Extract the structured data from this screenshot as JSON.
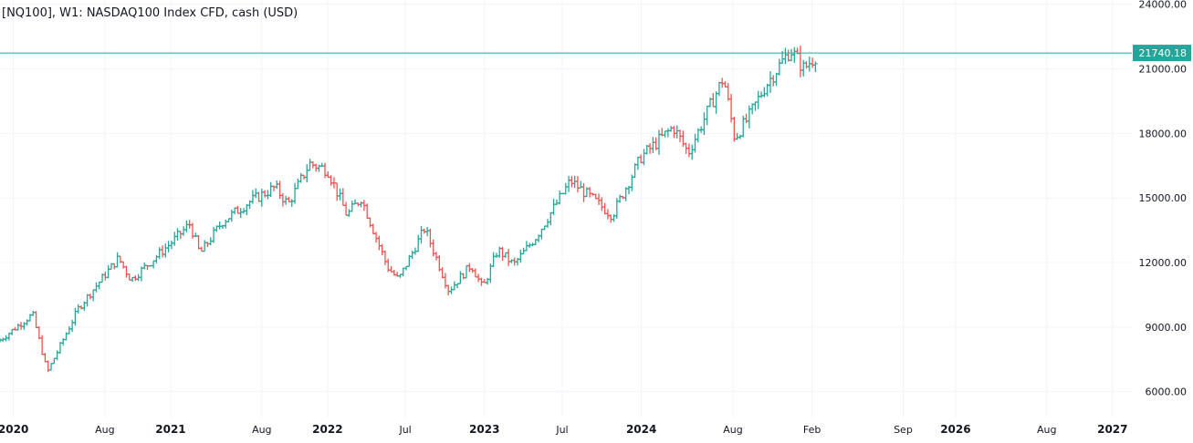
{
  "header": {
    "symbol_title": "[NQ100], W1: NASDAQ100 Index CFD, cash (USD)"
  },
  "colors": {
    "up": "#26a69a",
    "down": "#ef5350",
    "price_line": "#26a69a",
    "grid": "#f0f3fa",
    "axis_text": "#131722",
    "label_bg": "#26a69a",
    "label_text": "#ffffff"
  },
  "chart_data": {
    "type": "ohlc",
    "title": "[NQ100], W1: NASDAQ100 Index CFD, cash (USD)",
    "xlabel": "",
    "ylabel": "",
    "y_axis_position": "right",
    "grid": true,
    "current_price": 21740.18,
    "current_price_label": "21740.18",
    "ylim": [
      4800,
      24200
    ],
    "xlim": [
      "2019-12-01",
      "2027-02-15"
    ],
    "y_ticks": [
      {
        "value": 6000,
        "label": "6000.00"
      },
      {
        "value": 9000,
        "label": "9000.00"
      },
      {
        "value": 12000,
        "label": "12000.00"
      },
      {
        "value": 15000,
        "label": "15000.00"
      },
      {
        "value": 18000,
        "label": "18000.00"
      },
      {
        "value": 21000,
        "label": "21000.00"
      },
      {
        "value": 24000,
        "label": "24000.00"
      }
    ],
    "x_ticks": [
      {
        "date": "2020-01-01",
        "label": "2020",
        "bold": true
      },
      {
        "date": "2020-08-01",
        "label": "Aug",
        "bold": false
      },
      {
        "date": "2021-01-01",
        "label": "2021",
        "bold": true
      },
      {
        "date": "2021-08-01",
        "label": "Aug",
        "bold": false
      },
      {
        "date": "2022-01-01",
        "label": "2022",
        "bold": true
      },
      {
        "date": "2022-07-01",
        "label": "Jul",
        "bold": false
      },
      {
        "date": "2023-01-01",
        "label": "2023",
        "bold": true
      },
      {
        "date": "2023-07-01",
        "label": "Jul",
        "bold": false
      },
      {
        "date": "2024-01-01",
        "label": "2024",
        "bold": true
      },
      {
        "date": "2024-08-01",
        "label": "Aug",
        "bold": false
      },
      {
        "date": "2025-02-01",
        "label": "Feb",
        "bold": false
      },
      {
        "date": "2025-09-01",
        "label": "Sep",
        "bold": false
      },
      {
        "date": "2026-01-01",
        "label": "2026",
        "bold": true
      },
      {
        "date": "2026-08-01",
        "label": "Aug",
        "bold": false
      },
      {
        "date": "2027-01-01",
        "label": "2027",
        "bold": true
      }
    ],
    "anchors": [
      {
        "date": "2019-12-01",
        "close": 8400
      },
      {
        "date": "2020-02-15",
        "close": 9600
      },
      {
        "date": "2020-03-20",
        "close": 6900
      },
      {
        "date": "2020-06-01",
        "close": 9900
      },
      {
        "date": "2020-09-01",
        "close": 12200
      },
      {
        "date": "2020-10-01",
        "close": 11200
      },
      {
        "date": "2021-01-01",
        "close": 12900
      },
      {
        "date": "2021-02-15",
        "close": 13800
      },
      {
        "date": "2021-03-10",
        "close": 12400
      },
      {
        "date": "2021-05-01",
        "close": 13900
      },
      {
        "date": "2021-07-01",
        "close": 14800
      },
      {
        "date": "2021-09-01",
        "close": 15500
      },
      {
        "date": "2021-10-01",
        "close": 14700
      },
      {
        "date": "2021-11-20",
        "close": 16600
      },
      {
        "date": "2022-01-01",
        "close": 16300
      },
      {
        "date": "2022-02-15",
        "close": 14200
      },
      {
        "date": "2022-03-20",
        "close": 15000
      },
      {
        "date": "2022-05-20",
        "close": 11800
      },
      {
        "date": "2022-06-15",
        "close": 11200
      },
      {
        "date": "2022-08-15",
        "close": 13600
      },
      {
        "date": "2022-10-10",
        "close": 10700
      },
      {
        "date": "2022-12-01",
        "close": 11900
      },
      {
        "date": "2022-12-28",
        "close": 10800
      },
      {
        "date": "2023-02-01",
        "close": 12600
      },
      {
        "date": "2023-03-10",
        "close": 11900
      },
      {
        "date": "2023-05-01",
        "close": 13200
      },
      {
        "date": "2023-07-20",
        "close": 15800
      },
      {
        "date": "2023-10-25",
        "close": 14200
      },
      {
        "date": "2023-12-31",
        "close": 16900
      },
      {
        "date": "2024-03-15",
        "close": 18300
      },
      {
        "date": "2024-04-19",
        "close": 17100
      },
      {
        "date": "2024-07-10",
        "close": 20600
      },
      {
        "date": "2024-08-05",
        "close": 17800
      },
      {
        "date": "2024-09-05",
        "close": 18700
      },
      {
        "date": "2024-10-15",
        "close": 20200
      },
      {
        "date": "2024-12-13",
        "close": 21900
      },
      {
        "date": "2025-01-13",
        "close": 21000
      },
      {
        "date": "2025-02-15",
        "close": 21740
      }
    ]
  }
}
